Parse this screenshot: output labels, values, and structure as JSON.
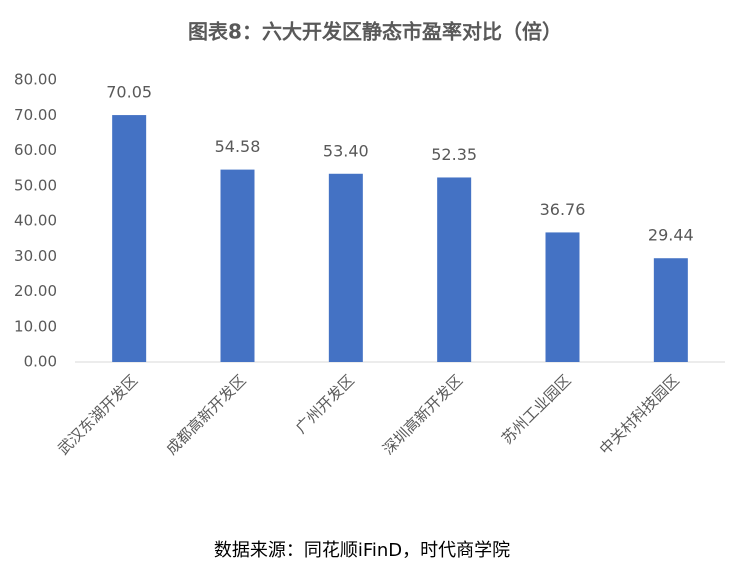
{
  "chart_data": {
    "type": "bar",
    "title": "图表8：六大开发区静态市盈率对比（倍）",
    "source": "数据来源：同花顺iFinD，时代商学院",
    "categories": [
      "武汉东湖开发区",
      "成都高新开发区",
      "广州开发区",
      "深圳高新开发区",
      "苏州工业园区",
      "中关村科技园区"
    ],
    "values": [
      70.05,
      54.58,
      53.4,
      52.35,
      36.76,
      29.44
    ],
    "value_labels": [
      "70.05",
      "54.58",
      "53.40",
      "52.35",
      "36.76",
      "29.44"
    ],
    "color": "#4472c4",
    "ylim": [
      0,
      80
    ],
    "yticks": [
      {
        "value": 0,
        "label": "0.00"
      },
      {
        "value": 10,
        "label": "10.00"
      },
      {
        "value": 20,
        "label": "20.00"
      },
      {
        "value": 30,
        "label": "30.00"
      },
      {
        "value": 40,
        "label": "40.00"
      },
      {
        "value": 50,
        "label": "50.00"
      },
      {
        "value": 60,
        "label": "60.00"
      },
      {
        "value": 70,
        "label": "70.00"
      },
      {
        "value": 80,
        "label": "80.00"
      }
    ],
    "grid": false
  }
}
